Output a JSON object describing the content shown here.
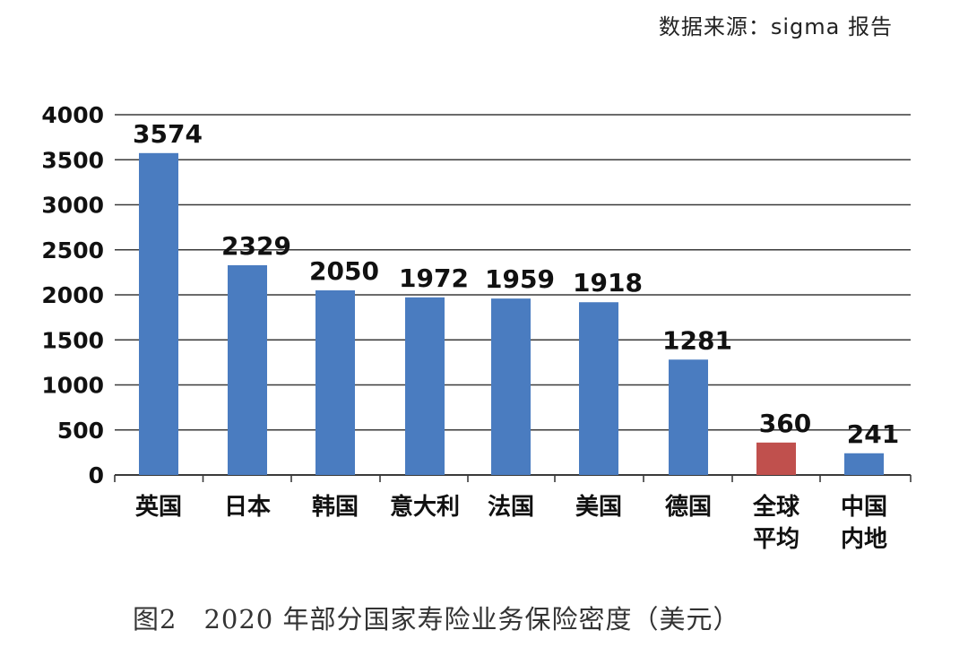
{
  "source_note": "数据来源：sigma 报告",
  "caption": "图2　2020 年部分国家寿险业务保险密度（美元）",
  "colors": {
    "bar": "#4a7cc0",
    "highlight": "#c0504d",
    "grid": "#3a3a3a"
  },
  "chart_data": {
    "type": "bar",
    "title": "",
    "xlabel": "",
    "ylabel": "",
    "ylim": [
      0,
      4000
    ],
    "yticks": [
      0,
      500,
      1000,
      1500,
      2000,
      2500,
      3000,
      3500,
      4000
    ],
    "grid": true,
    "categories": [
      [
        "英国"
      ],
      [
        "日本"
      ],
      [
        "韩国"
      ],
      [
        "意大利"
      ],
      [
        "法国"
      ],
      [
        "美国"
      ],
      [
        "德国"
      ],
      [
        "全球",
        "平均"
      ],
      [
        "中国",
        "内地"
      ]
    ],
    "values": [
      3574,
      2329,
      2050,
      1972,
      1959,
      1918,
      1281,
      360,
      241
    ],
    "value_labels": [
      "3574",
      "2329",
      "2050",
      "1972",
      "1959",
      "1918",
      "1281",
      "360",
      "241"
    ],
    "highlight_index": 7
  }
}
